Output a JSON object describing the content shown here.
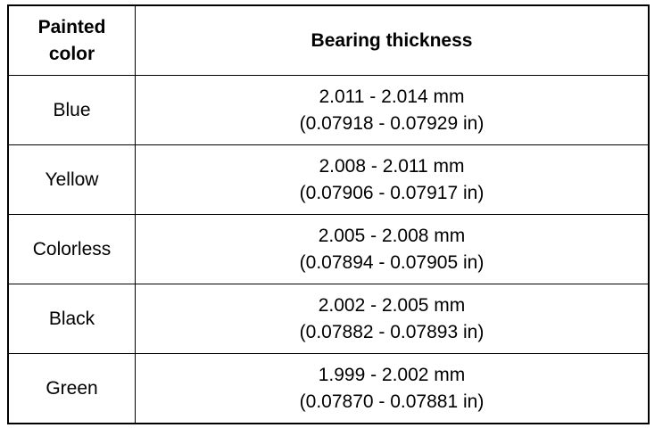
{
  "table": {
    "header": [
      "Painted color",
      "Bearing thickness"
    ],
    "rows": [
      {
        "color": "Blue",
        "thickness": [
          "2.011 - 2.014 mm",
          "(0.07918 - 0.07929 in)"
        ]
      },
      {
        "color": "Yellow",
        "thickness": [
          "2.008 - 2.011 mm",
          "(0.07906 - 0.07917 in)"
        ]
      },
      {
        "color": "Colorless",
        "thickness": [
          "2.005 - 2.008 mm",
          "(0.07894 - 0.07905 in)"
        ]
      },
      {
        "color": "Black",
        "thickness": [
          "2.002 - 2.005 mm",
          "(0.07882 - 0.07893 in)"
        ]
      },
      {
        "color": "Green",
        "thickness": [
          "1.999 - 2.002 mm",
          "(0.07870 - 0.07881 in)"
        ]
      }
    ]
  }
}
